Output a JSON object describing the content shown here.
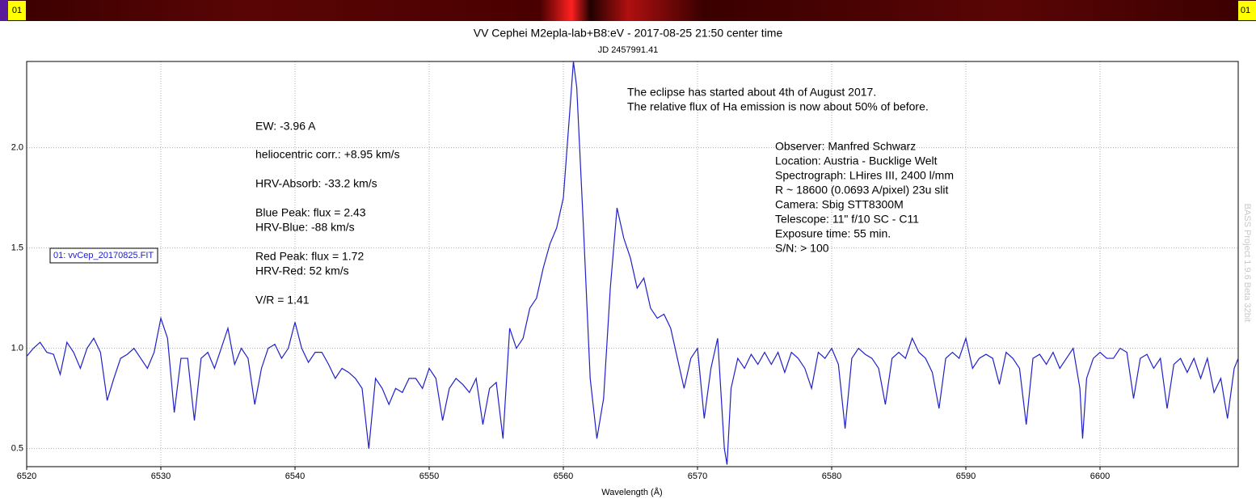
{
  "chart_data": {
    "type": "line",
    "title": "VV Cephei M2epla-lab+B8:eV - 2017-08-25 21:50 center time",
    "subtitle": "JD 2457991.41",
    "xlabel": "Wavelength (Å)",
    "strip": {
      "left_label": "01",
      "right_label": "01"
    },
    "watermark": "BASS Project 1.9.6 Beta 32bit",
    "xlim": [
      6520,
      6610.3
    ],
    "ylim": [
      0.41,
      2.43
    ],
    "xticks": [
      6520,
      6530,
      6540,
      6550,
      6560,
      6570,
      6580,
      6590,
      6600
    ],
    "yticks": [
      0.5,
      {
        "value": 1,
        "label": "1.0"
      },
      1.5,
      {
        "value": 2,
        "label": "2.0"
      }
    ],
    "grid": true,
    "x": [
      6520,
      6520.5,
      6521,
      6521.5,
      6522,
      6522.5,
      6523,
      6523.5,
      6524,
      6524.5,
      6525,
      6525.5,
      6526,
      6526.5,
      6527,
      6527.5,
      6528,
      6528.5,
      6529,
      6529.5,
      6530,
      6530.5,
      6531,
      6531.5,
      6532,
      6532.5,
      6533,
      6533.5,
      6534,
      6534.5,
      6535,
      6535.5,
      6536,
      6536.5,
      6537,
      6537.5,
      6538,
      6538.5,
      6539,
      6539.5,
      6540,
      6540.5,
      6541,
      6541.5,
      6542,
      6542.5,
      6543,
      6543.5,
      6544,
      6544.5,
      6545,
      6545.5,
      6546,
      6546.5,
      6547,
      6547.5,
      6548,
      6548.5,
      6549,
      6549.5,
      6550,
      6550.5,
      6551,
      6551.5,
      6552,
      6552.5,
      6553,
      6553.5,
      6554,
      6554.5,
      6555,
      6555.5,
      6556,
      6556.5,
      6557,
      6557.5,
      6558,
      6558.5,
      6559,
      6559.5,
      6560,
      6560.5,
      6560.75,
      6561,
      6561.5,
      6562,
      6562.5,
      6563,
      6563.5,
      6564,
      6564.5,
      6565,
      6565.5,
      6566,
      6566.5,
      6567,
      6567.5,
      6568,
      6568.5,
      6569,
      6569.5,
      6570,
      6570.5,
      6571,
      6571.5,
      6572,
      6572.2,
      6572.5,
      6573,
      6573.5,
      6574,
      6574.5,
      6575,
      6575.5,
      6576,
      6576.5,
      6577,
      6577.5,
      6578,
      6578.5,
      6579,
      6579.5,
      6580,
      6580.5,
      6581,
      6581.5,
      6582,
      6582.5,
      6583,
      6583.5,
      6584,
      6584.5,
      6585,
      6585.5,
      6586,
      6586.5,
      6587,
      6587.5,
      6588,
      6588.5,
      6589,
      6589.5,
      6590,
      6590.5,
      6591,
      6591.5,
      6592,
      6592.5,
      6593,
      6593.5,
      6594,
      6594.5,
      6595,
      6595.5,
      6596,
      6596.5,
      6597,
      6597.5,
      6598,
      6598.5,
      6598.7,
      6599,
      6599.5,
      6600,
      6600.5,
      6601,
      6601.5,
      6602,
      6602.5,
      6603,
      6603.5,
      6604,
      6604.5,
      6605,
      6605.5,
      6606,
      6606.5,
      6607,
      6607.5,
      6608,
      6608.5,
      6609,
      6609.5,
      6610,
      6610.3
    ],
    "series": [
      {
        "name": "01: vvCep_20170825.FIT",
        "color": "#2020c8",
        "values": [
          0.96,
          1.0,
          1.03,
          0.98,
          0.97,
          0.87,
          1.03,
          0.98,
          0.9,
          1.0,
          1.05,
          0.98,
          0.74,
          0.85,
          0.95,
          0.97,
          1.0,
          0.95,
          0.9,
          0.98,
          1.15,
          1.05,
          0.68,
          0.95,
          0.95,
          0.64,
          0.95,
          0.98,
          0.9,
          1.0,
          1.1,
          0.92,
          1.0,
          0.95,
          0.72,
          0.9,
          1.0,
          1.02,
          0.95,
          1.0,
          1.13,
          1.0,
          0.93,
          0.98,
          0.98,
          0.92,
          0.85,
          0.9,
          0.88,
          0.85,
          0.8,
          0.5,
          0.85,
          0.8,
          0.72,
          0.8,
          0.78,
          0.85,
          0.85,
          0.8,
          0.9,
          0.85,
          0.64,
          0.8,
          0.85,
          0.82,
          0.78,
          0.85,
          0.62,
          0.8,
          0.83,
          0.55,
          1.1,
          1.0,
          1.05,
          1.2,
          1.25,
          1.4,
          1.52,
          1.6,
          1.75,
          2.2,
          2.43,
          2.3,
          1.6,
          0.85,
          0.55,
          0.75,
          1.3,
          1.7,
          1.55,
          1.45,
          1.3,
          1.35,
          1.2,
          1.15,
          1.17,
          1.1,
          0.95,
          0.8,
          0.95,
          1.0,
          0.65,
          0.9,
          1.05,
          0.5,
          0.42,
          0.8,
          0.95,
          0.9,
          0.97,
          0.92,
          0.98,
          0.92,
          0.98,
          0.88,
          0.98,
          0.95,
          0.9,
          0.8,
          0.98,
          0.95,
          1.0,
          0.92,
          0.6,
          0.95,
          1.0,
          0.97,
          0.95,
          0.9,
          0.72,
          0.95,
          0.98,
          0.95,
          1.05,
          0.98,
          0.95,
          0.88,
          0.7,
          0.95,
          0.98,
          0.95,
          1.05,
          0.9,
          0.95,
          0.97,
          0.95,
          0.82,
          0.98,
          0.95,
          0.9,
          0.62,
          0.95,
          0.97,
          0.92,
          0.98,
          0.9,
          0.95,
          1.0,
          0.8,
          0.55,
          0.85,
          0.95,
          0.98,
          0.95,
          0.95,
          1.0,
          0.98,
          0.75,
          0.95,
          0.97,
          0.9,
          0.95,
          0.7,
          0.92,
          0.95,
          0.88,
          0.95,
          0.85,
          0.95,
          0.78,
          0.85,
          0.65,
          0.9,
          0.95
        ]
      }
    ],
    "annotations": [
      [
        "EW: -3.96 A"
      ],
      [
        "heliocentric corr.: +8.95 km/s"
      ],
      [
        "HRV-Absorb: -33.2 km/s"
      ],
      [
        "Blue Peak:  flux = 2.43",
        "HRV-Blue: -88 km/s"
      ],
      [
        "Red Peak:  flux = 1.72",
        "HRV-Red: 52 km/s"
      ],
      [
        "V/R = 1.41"
      ],
      [
        "The eclipse has started about 4th of August 2017.",
        "The relative flux of Ha emission is now about 50% of before."
      ],
      [
        "Observer: Manfred Schwarz",
        "Location: Austria - Bucklige Welt",
        "Spectrograph: LHires III, 2400 l/mm",
        "R ~ 18600 (0.0693 A/pixel) 23u slit",
        "Camera: Sbig STT8300M",
        "Telescope: 11\" f/10 SC - C11",
        "Exposure time: 55 min.",
        "S/N:  > 100"
      ]
    ]
  }
}
